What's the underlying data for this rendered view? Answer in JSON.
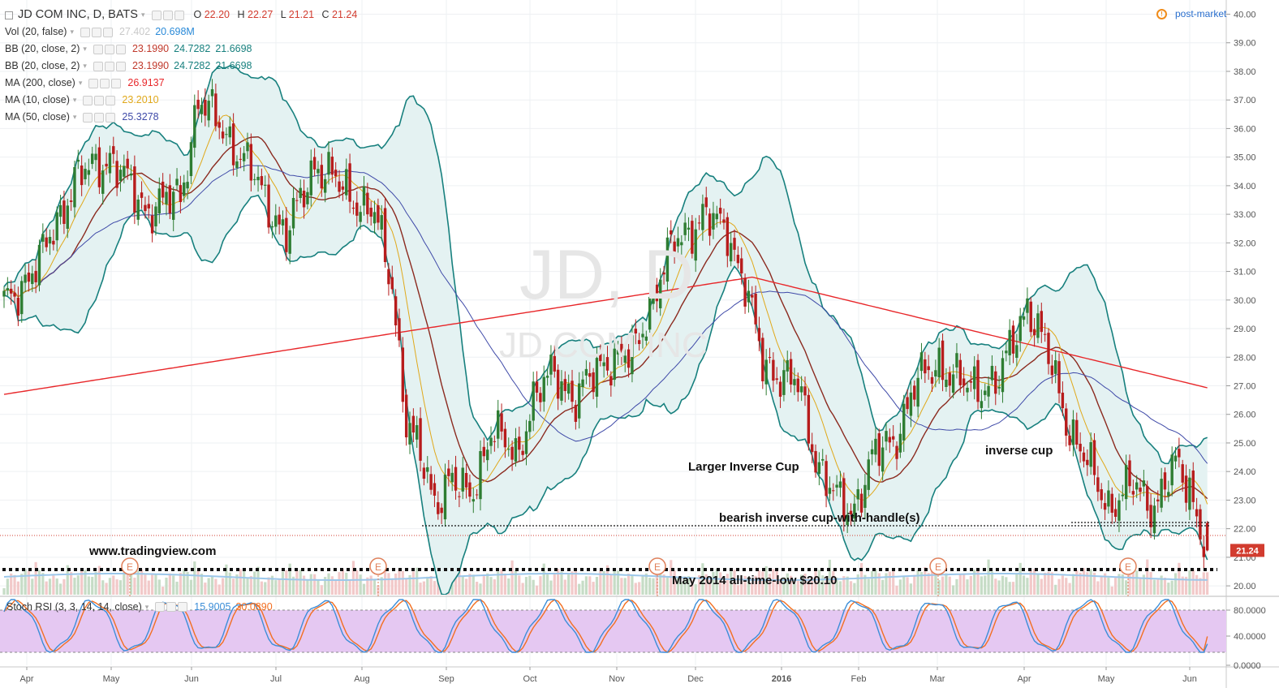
{
  "header": {
    "symbol": "JD COM INC, D, BATS",
    "ohlc": {
      "o_label": "O",
      "o": "22.20",
      "h_label": "H",
      "h": "22.27",
      "l_label": "L",
      "l": "21.21",
      "c_label": "C",
      "c": "21.24"
    },
    "post_market": "post-market",
    "watermark_symbol": "JD, D",
    "watermark_name": "JD COM INC"
  },
  "indicators": [
    {
      "name": "Vol (20, false)",
      "values": [
        "27.402",
        "20.698M"
      ],
      "colors": [
        "#c9c9c9",
        "#2a8ad8"
      ]
    },
    {
      "name": "BB (20, close, 2)",
      "values": [
        "23.1990",
        "24.7282",
        "21.6698"
      ],
      "colors": [
        "#c0392b",
        "#17807e",
        "#17807e"
      ]
    },
    {
      "name": "BB (20, close, 2)",
      "values": [
        "23.1990",
        "24.7282",
        "21.6698"
      ],
      "colors": [
        "#c0392b",
        "#17807e",
        "#17807e"
      ]
    },
    {
      "name": "MA (200, close)",
      "values": [
        "26.9137"
      ],
      "colors": [
        "#e8272a"
      ]
    },
    {
      "name": "MA (10, close)",
      "values": [
        "23.2010"
      ],
      "colors": [
        "#e0a81a"
      ]
    },
    {
      "name": "MA (50, close)",
      "values": [
        "25.3278"
      ],
      "colors": [
        "#3f4aa8"
      ]
    }
  ],
  "stoch": {
    "name": "Stoch RSI (3, 3, 14, 14, close)",
    "k": "15.9005",
    "d": "30.0890",
    "k_color": "#3c8ed8",
    "d_color": "#f26f21"
  },
  "annotations": {
    "site": "www.tradingview.com",
    "larger_cup": "Larger Inverse Cup",
    "inverse_cup": "inverse cup",
    "handle": "bearish inverse cup-with-handle(s)",
    "low": "May 2014 all-time-low $20.10"
  },
  "earnings_marker": "E",
  "price_tag": "21.24",
  "colors": {
    "up": "#2e7d32",
    "down": "#b71c1c",
    "bb": "#17807e",
    "bb_fill": "#e4f2f2",
    "ma200": "#e8272a",
    "ma10": "#e0a81a",
    "ma50": "#3f4aa8",
    "mid": "#8b2a1f",
    "stoch_bg": "#e5c8f2"
  },
  "chart_data": {
    "type": "candlestick",
    "y_axis_ticks": [
      "40.00",
      "39.00",
      "38.00",
      "37.00",
      "36.00",
      "35.00",
      "34.00",
      "33.00",
      "32.00",
      "31.00",
      "30.00",
      "29.00",
      "28.00",
      "27.00",
      "26.00",
      "25.00",
      "24.00",
      "23.00",
      "22.00",
      "21.00",
      "20.00"
    ],
    "stoch_axis_ticks": [
      "80.0000",
      "40.0000",
      "0.0000"
    ],
    "x_axis_labels": [
      "Apr",
      "May",
      "Jun",
      "Jul",
      "Aug",
      "Sep",
      "Oct",
      "Nov",
      "Dec",
      "2016",
      "Feb",
      "Mar",
      "Apr",
      "May",
      "Jun"
    ],
    "close_path": [
      [
        0,
        29.8
      ],
      [
        10,
        31.3
      ],
      [
        20,
        34.2
      ],
      [
        30,
        35.0
      ],
      [
        40,
        33.2
      ],
      [
        50,
        33.6
      ],
      [
        55,
        37.0
      ],
      [
        62,
        36.0
      ],
      [
        70,
        34.5
      ],
      [
        80,
        32.2
      ],
      [
        88,
        34.8
      ],
      [
        95,
        34.0
      ],
      [
        105,
        33.0
      ],
      [
        110,
        30.5
      ],
      [
        114,
        25.8
      ],
      [
        118,
        24.5
      ],
      [
        122,
        22.9
      ],
      [
        126,
        23.8
      ],
      [
        132,
        23.0
      ],
      [
        138,
        25.5
      ],
      [
        145,
        24.5
      ],
      [
        150,
        26.5
      ],
      [
        156,
        27.5
      ],
      [
        162,
        26.5
      ],
      [
        170,
        27.9
      ],
      [
        178,
        28.0
      ],
      [
        185,
        30.5
      ],
      [
        190,
        32.0
      ],
      [
        198,
        32.9
      ],
      [
        205,
        32.5
      ],
      [
        210,
        30.5
      ],
      [
        215,
        27.8
      ],
      [
        225,
        27.0
      ],
      [
        230,
        24.5
      ],
      [
        236,
        23.0
      ],
      [
        240,
        22.5
      ],
      [
        246,
        24.5
      ],
      [
        252,
        25.0
      ],
      [
        258,
        27.0
      ],
      [
        265,
        27.8
      ],
      [
        273,
        26.9
      ],
      [
        282,
        27.2
      ],
      [
        290,
        29.9
      ],
      [
        296,
        28.0
      ],
      [
        302,
        25.5
      ],
      [
        308,
        24.0
      ],
      [
        313,
        22.8
      ],
      [
        320,
        23.5
      ],
      [
        326,
        22.8
      ],
      [
        332,
        24.2
      ],
      [
        336,
        23.5
      ],
      [
        339,
        22.0
      ],
      [
        341,
        21.24
      ]
    ],
    "stoch_k_levels": [
      "0",
      "20",
      "80",
      "100"
    ],
    "last_values": {
      "ma200": 26.9137,
      "ma50": 25.3278,
      "ma10": 23.201,
      "bb_mid": 23.199,
      "bb_upper": 24.7282,
      "bb_lower": 21.6698,
      "close": 21.24,
      "all_time_low": 20.1
    }
  }
}
